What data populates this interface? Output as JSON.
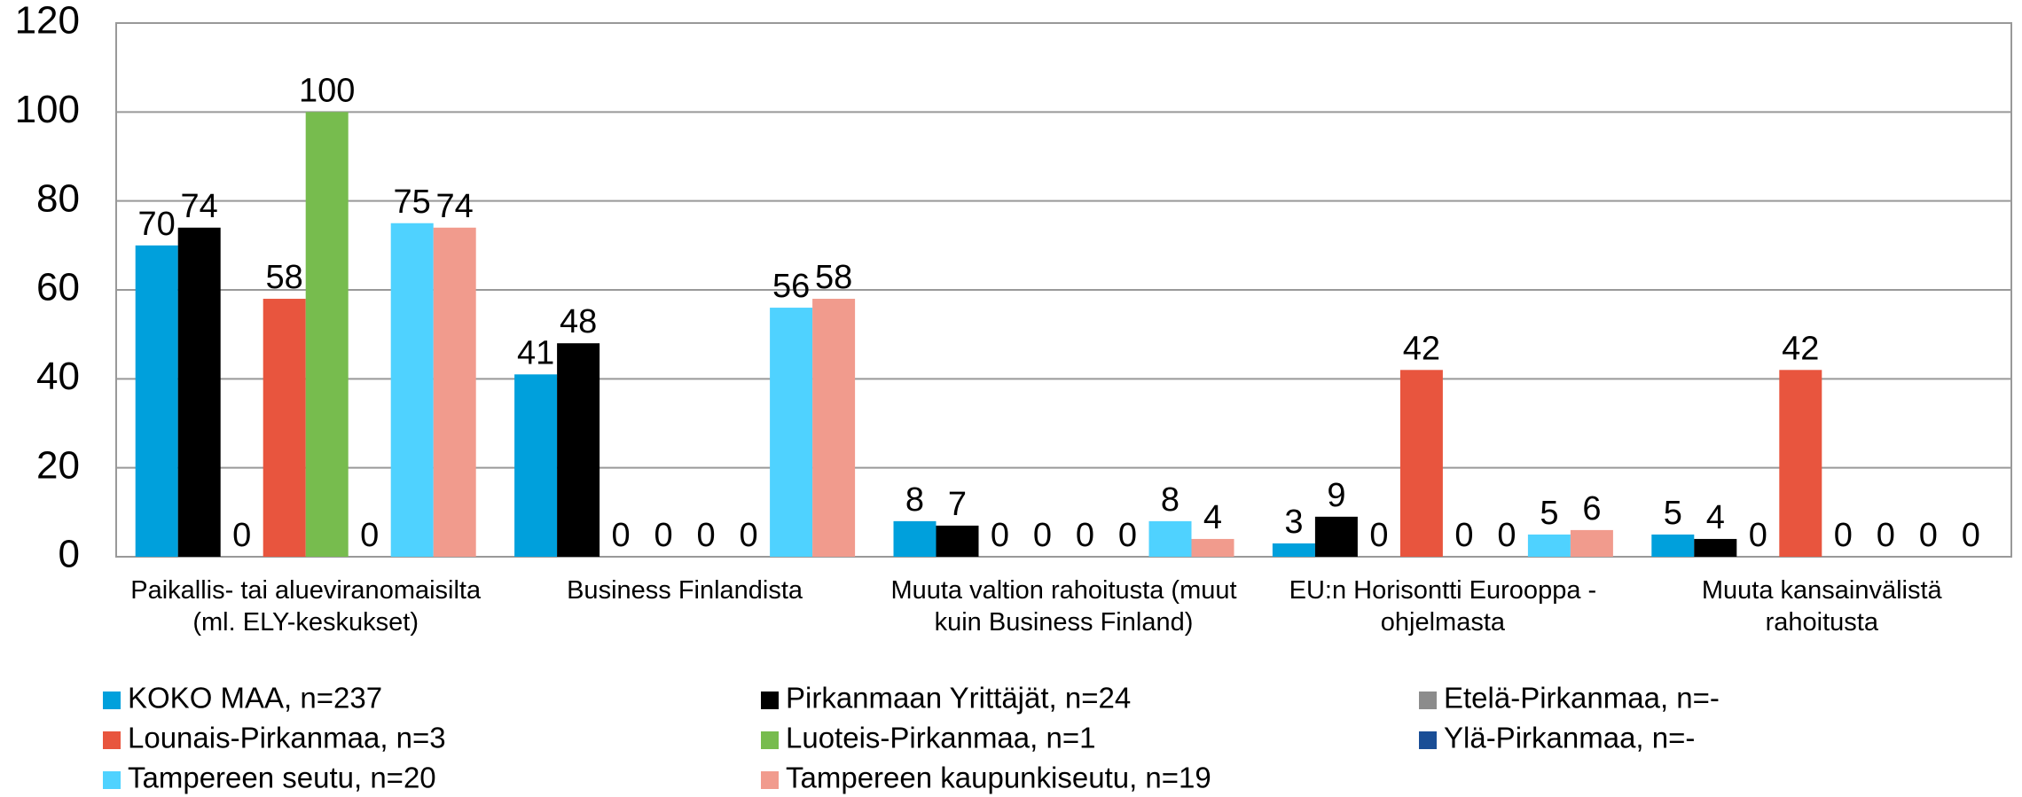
{
  "chart_data": {
    "type": "bar",
    "categories": [
      "Paikallis- tai alueviranomaisilta (ml. ELY-keskukset)",
      "Business Finlandista",
      "Muuta valtion rahoitusta (muut kuin Business Finland)",
      "EU:n Horisontti Eurooppa -ohjelmasta",
      "Muuta kansainvälistä rahoitusta"
    ],
    "series": [
      {
        "name": "KOKO MAA, n=237",
        "color": "#00a0dc",
        "values": [
          70,
          41,
          8,
          3,
          5
        ]
      },
      {
        "name": "Pirkanmaan Yrittäjät, n=24",
        "color": "#000000",
        "values": [
          74,
          48,
          7,
          9,
          4
        ]
      },
      {
        "name": "Etelä-Pirkanmaa, n=-",
        "color": "#8c8c8c",
        "values": [
          0,
          0,
          0,
          0,
          0
        ]
      },
      {
        "name": "Lounais-Pirkanmaa, n=3",
        "color": "#e8553e",
        "values": [
          58,
          0,
          0,
          42,
          42
        ]
      },
      {
        "name": "Luoteis-Pirkanmaa, n=1",
        "color": "#77bc4e",
        "values": [
          100,
          0,
          0,
          0,
          0
        ]
      },
      {
        "name": "Ylä-Pirkanmaa, n=-",
        "color": "#1a4e96",
        "values": [
          0,
          0,
          0,
          0,
          0
        ]
      },
      {
        "name": "Tampereen seutu, n=20",
        "color": "#4fd2ff",
        "values": [
          75,
          56,
          8,
          5,
          0
        ]
      },
      {
        "name": "Tampereen kaupunkiseutu, n=19",
        "color": "#f19b8d",
        "values": [
          74,
          58,
          4,
          6,
          0
        ]
      }
    ],
    "ylim": [
      0,
      120
    ],
    "yticks": [
      0,
      20,
      40,
      60,
      80,
      100,
      120
    ],
    "grid": true,
    "legend": "bottom"
  }
}
